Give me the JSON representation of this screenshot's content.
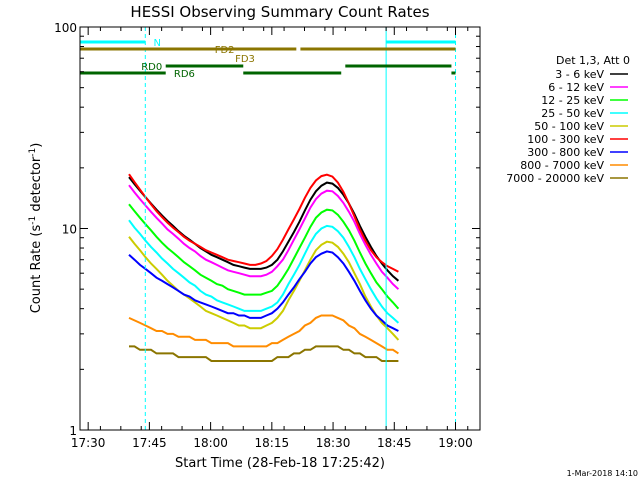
{
  "chart_data": {
    "type": "line",
    "title": "HESSI Observing Summary Count Rates",
    "xlabel": "Start Time (28-Feb-18 17:25:42)",
    "ylabel_parts": [
      "Count Rate (s",
      "-1",
      " detector",
      "-1",
      ")"
    ],
    "ylabel": "Count Rate (s-1 detector-1)",
    "y_scale": "log",
    "ylim": [
      1,
      100
    ],
    "xlim": [
      "17:28",
      "19:06"
    ],
    "x_ticks": [
      "17:30",
      "17:45",
      "18:00",
      "18:15",
      "18:30",
      "18:45",
      "19:00"
    ],
    "y_ticks": [
      "1",
      "10",
      "100"
    ],
    "footer": "1-Mar-2018 14:10",
    "legend_title": "Det 1,3, Att 0",
    "series": [
      {
        "name": "3 - 6 keV",
        "color": "#000000",
        "values": [
          18.0,
          16.6,
          15.4,
          14.3,
          13.3,
          12.4,
          11.6,
          10.9,
          10.3,
          9.7,
          9.2,
          8.8,
          8.4,
          8.0,
          7.7,
          7.4,
          7.2,
          7.0,
          6.8,
          6.6,
          6.5,
          6.4,
          6.3,
          6.3,
          6.3,
          6.4,
          6.6,
          7.0,
          7.7,
          8.6,
          9.6,
          10.8,
          12.3,
          13.9,
          15.3,
          16.3,
          16.9,
          16.7,
          15.9,
          14.7,
          13.3,
          11.8,
          10.3,
          9.1,
          8.1,
          7.3,
          6.7,
          6.2,
          5.8,
          5.5
        ]
      },
      {
        "name": "6 - 12 keV",
        "color": "#ff00ff",
        "values": [
          16.4,
          15.1,
          14.0,
          13.0,
          12.1,
          11.3,
          10.6,
          9.9,
          9.4,
          8.9,
          8.4,
          8.0,
          7.7,
          7.3,
          7.0,
          6.8,
          6.6,
          6.4,
          6.2,
          6.1,
          6.0,
          5.9,
          5.8,
          5.8,
          5.8,
          5.9,
          6.1,
          6.5,
          7.0,
          7.8,
          8.8,
          9.9,
          11.2,
          12.7,
          14.0,
          14.9,
          15.4,
          15.3,
          14.5,
          13.4,
          12.1,
          10.8,
          9.4,
          8.3,
          7.4,
          6.7,
          6.1,
          5.7,
          5.3,
          5.0
        ]
      },
      {
        "name": "12 - 25 keV",
        "color": "#00ff00",
        "values": [
          13.2,
          12.2,
          11.3,
          10.5,
          9.8,
          9.1,
          8.5,
          8.0,
          7.6,
          7.2,
          6.8,
          6.5,
          6.2,
          5.9,
          5.7,
          5.5,
          5.3,
          5.2,
          5.0,
          4.9,
          4.8,
          4.7,
          4.7,
          4.7,
          4.7,
          4.8,
          4.9,
          5.2,
          5.7,
          6.3,
          7.1,
          8.0,
          9.0,
          10.2,
          11.3,
          12.0,
          12.4,
          12.3,
          11.7,
          10.8,
          9.8,
          8.7,
          7.6,
          6.7,
          6.0,
          5.4,
          5.0,
          4.6,
          4.3,
          4.0
        ]
      },
      {
        "name": "25 - 50 keV",
        "color": "#00ffff",
        "values": [
          11.0,
          10.1,
          9.4,
          8.7,
          8.1,
          7.6,
          7.1,
          6.7,
          6.3,
          6.0,
          5.7,
          5.4,
          5.2,
          4.9,
          4.7,
          4.6,
          4.4,
          4.3,
          4.2,
          4.1,
          4.0,
          3.9,
          3.9,
          3.9,
          3.9,
          4.0,
          4.1,
          4.3,
          4.7,
          5.3,
          5.9,
          6.6,
          7.5,
          8.5,
          9.4,
          10.0,
          10.3,
          10.2,
          9.7,
          9.0,
          8.1,
          7.2,
          6.3,
          5.6,
          5.0,
          4.5,
          4.1,
          3.8,
          3.6,
          3.4
        ]
      },
      {
        "name": "50 - 100 keV",
        "color": "#cccc00",
        "values": [
          9.1,
          8.4,
          7.8,
          7.2,
          6.7,
          6.3,
          5.9,
          5.5,
          5.2,
          4.9,
          4.7,
          4.5,
          4.3,
          4.1,
          3.9,
          3.8,
          3.7,
          3.6,
          3.5,
          3.4,
          3.3,
          3.3,
          3.2,
          3.2,
          3.2,
          3.3,
          3.4,
          3.6,
          3.9,
          4.4,
          4.9,
          5.5,
          6.2,
          7.0,
          7.8,
          8.3,
          8.6,
          8.5,
          8.1,
          7.5,
          6.8,
          6.0,
          5.3,
          4.6,
          4.1,
          3.7,
          3.4,
          3.2,
          3.0,
          2.8
        ]
      },
      {
        "name": "100 - 300 keV",
        "color": "#ff0000",
        "values": [
          18.6,
          17.0,
          15.6,
          14.3,
          13.2,
          12.2,
          11.4,
          10.7,
          10.1,
          9.6,
          9.1,
          8.7,
          8.4,
          8.1,
          7.8,
          7.6,
          7.4,
          7.2,
          7.0,
          6.9,
          6.8,
          6.7,
          6.6,
          6.6,
          6.7,
          6.9,
          7.3,
          7.9,
          8.8,
          9.9,
          11.1,
          12.5,
          14.2,
          15.9,
          17.3,
          18.2,
          18.5,
          18.1,
          16.9,
          15.2,
          13.3,
          11.5,
          9.9,
          8.7,
          7.8,
          7.2,
          6.8,
          6.5,
          6.3,
          6.1
        ]
      },
      {
        "name": "300 - 800 keV",
        "color": "#0000ff",
        "values": [
          7.4,
          7.0,
          6.6,
          6.3,
          6.0,
          5.7,
          5.5,
          5.3,
          5.1,
          4.9,
          4.7,
          4.6,
          4.4,
          4.3,
          4.2,
          4.1,
          4.0,
          3.9,
          3.8,
          3.8,
          3.7,
          3.7,
          3.6,
          3.6,
          3.6,
          3.7,
          3.8,
          4.0,
          4.3,
          4.7,
          5.1,
          5.6,
          6.1,
          6.7,
          7.2,
          7.5,
          7.7,
          7.6,
          7.2,
          6.7,
          6.1,
          5.5,
          4.9,
          4.4,
          4.0,
          3.7,
          3.5,
          3.3,
          3.2,
          3.1
        ]
      },
      {
        "name": "800 - 7000 keV",
        "color": "#ff8c00",
        "values": [
          3.6,
          3.5,
          3.4,
          3.3,
          3.2,
          3.1,
          3.1,
          3.0,
          3.0,
          2.9,
          2.9,
          2.9,
          2.8,
          2.8,
          2.8,
          2.7,
          2.7,
          2.7,
          2.7,
          2.6,
          2.6,
          2.6,
          2.6,
          2.6,
          2.6,
          2.6,
          2.7,
          2.7,
          2.8,
          2.9,
          3.0,
          3.1,
          3.3,
          3.4,
          3.6,
          3.7,
          3.7,
          3.7,
          3.6,
          3.5,
          3.3,
          3.2,
          3.0,
          2.9,
          2.8,
          2.7,
          2.6,
          2.5,
          2.5,
          2.4
        ]
      },
      {
        "name": "7000 - 20000 keV",
        "color": "#8b7500",
        "values": [
          2.6,
          2.6,
          2.5,
          2.5,
          2.5,
          2.4,
          2.4,
          2.4,
          2.4,
          2.3,
          2.3,
          2.3,
          2.3,
          2.3,
          2.3,
          2.2,
          2.2,
          2.2,
          2.2,
          2.2,
          2.2,
          2.2,
          2.2,
          2.2,
          2.2,
          2.2,
          2.2,
          2.3,
          2.3,
          2.3,
          2.4,
          2.4,
          2.5,
          2.5,
          2.6,
          2.6,
          2.6,
          2.6,
          2.6,
          2.5,
          2.5,
          2.4,
          2.4,
          2.3,
          2.3,
          2.3,
          2.2,
          2.2,
          2.2,
          2.2
        ]
      }
    ],
    "series_x_range": [
      "17:40",
      "18:46"
    ],
    "observing_bars": [
      {
        "label": "N",
        "color": "#00ffff",
        "segments": [
          [
            "17:28",
            "17:44"
          ],
          [
            "18:43",
            "19:00"
          ]
        ]
      },
      {
        "label": "FD2",
        "color": "#8b7500",
        "segments": [
          [
            "17:28",
            "18:21"
          ],
          [
            "18:22",
            "19:00"
          ]
        ]
      },
      {
        "label": "FD3",
        "color": "#8b7500",
        "segments": []
      },
      {
        "label": "RD0",
        "color": "#006400",
        "segments": [
          [
            "17:49",
            "18:08"
          ],
          [
            "18:33",
            "18:59"
          ]
        ]
      },
      {
        "label": "RD6",
        "color": "#006400",
        "segments": [
          [
            "17:28",
            "17:49"
          ],
          [
            "18:08",
            "18:32"
          ],
          [
            "18:59",
            "19:00"
          ]
        ]
      }
    ],
    "vlines": [
      {
        "time": "17:28",
        "style": "solid",
        "color": "#00ffff"
      },
      {
        "time": "17:44",
        "style": "dashed",
        "color": "#00ffff"
      },
      {
        "time": "18:43",
        "style": "solid",
        "color": "#00ffff"
      },
      {
        "time": "19:00",
        "style": "dashed",
        "color": "#00ffff"
      }
    ],
    "grid": false,
    "legend_position": "right"
  }
}
